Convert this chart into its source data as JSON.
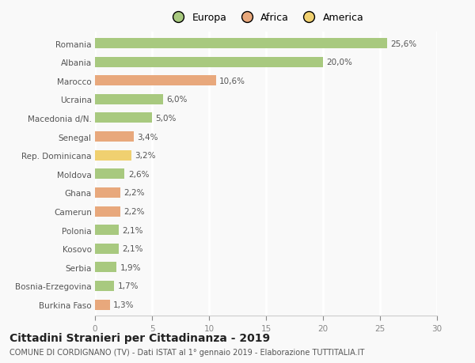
{
  "categories": [
    "Romania",
    "Albania",
    "Marocco",
    "Ucraina",
    "Macedonia d/N.",
    "Senegal",
    "Rep. Dominicana",
    "Moldova",
    "Ghana",
    "Camerun",
    "Polonia",
    "Kosovo",
    "Serbia",
    "Bosnia-Erzegovina",
    "Burkina Faso"
  ],
  "values": [
    25.6,
    20.0,
    10.6,
    6.0,
    5.0,
    3.4,
    3.2,
    2.6,
    2.2,
    2.2,
    2.1,
    2.1,
    1.9,
    1.7,
    1.3
  ],
  "labels": [
    "25,6%",
    "20,0%",
    "10,6%",
    "6,0%",
    "5,0%",
    "3,4%",
    "3,2%",
    "2,6%",
    "2,2%",
    "2,2%",
    "2,1%",
    "2,1%",
    "1,9%",
    "1,7%",
    "1,3%"
  ],
  "colors": [
    "#a8c97f",
    "#a8c97f",
    "#e8a87c",
    "#a8c97f",
    "#a8c97f",
    "#e8a87c",
    "#f0d070",
    "#a8c97f",
    "#e8a87c",
    "#e8a87c",
    "#a8c97f",
    "#a8c97f",
    "#a8c97f",
    "#a8c97f",
    "#e8a87c"
  ],
  "legend_labels": [
    "Europa",
    "Africa",
    "America"
  ],
  "legend_colors": [
    "#a8c97f",
    "#e8a87c",
    "#f0d070"
  ],
  "xlim": [
    0,
    30
  ],
  "xticks": [
    0,
    5,
    10,
    15,
    20,
    25,
    30
  ],
  "title_main": "Cittadini Stranieri per Cittadinanza - 2019",
  "title_sub": "COMUNE DI CORDIGNANO (TV) - Dati ISTAT al 1° gennaio 2019 - Elaborazione TUTTITALIA.IT",
  "bg_color": "#f9f9f9",
  "grid_color": "#ffffff",
  "bar_height": 0.55,
  "label_fontsize": 7.5,
  "tick_fontsize": 7.5,
  "legend_fontsize": 9,
  "title_fontsize": 10,
  "subtitle_fontsize": 7
}
